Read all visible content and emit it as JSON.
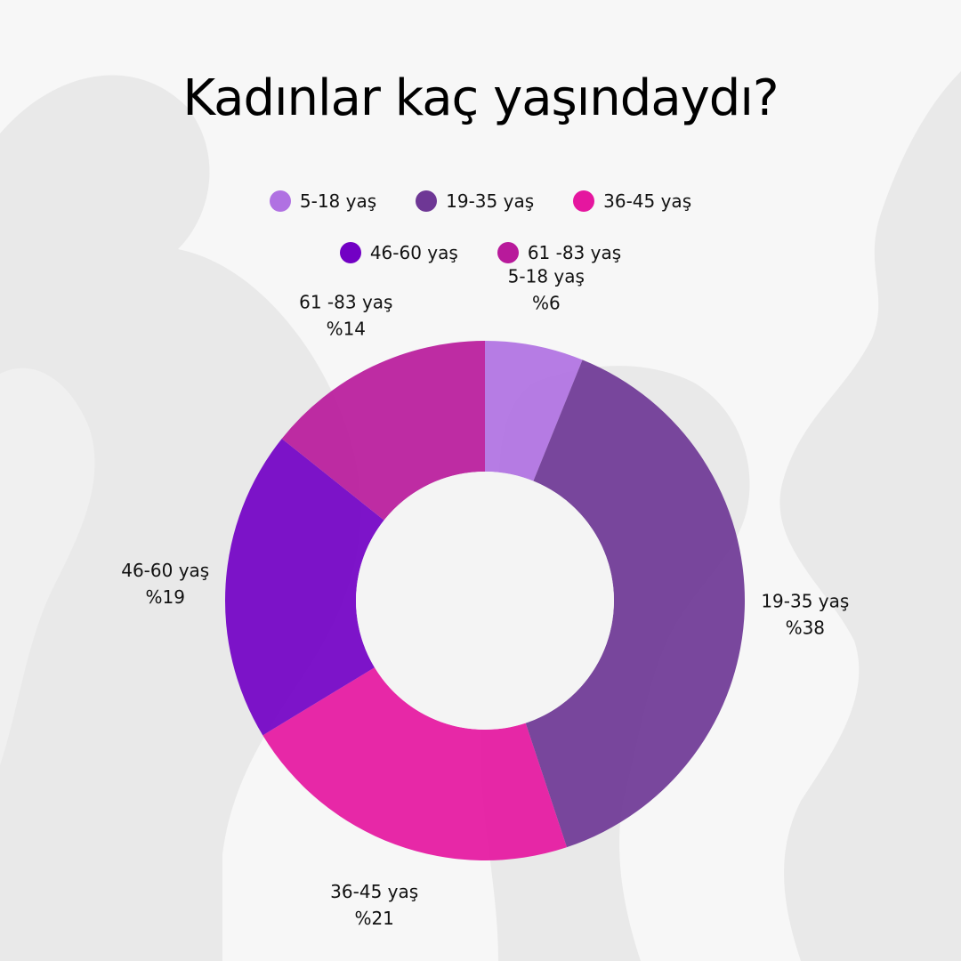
{
  "title": "Kadınlar kaç yaşındaydı?",
  "chart_data": {
    "type": "pie",
    "variant": "donut",
    "categories": [
      "5-18 yaş",
      "19-35 yaş",
      "36-45 yaş",
      "46-60 yaş",
      "61 -83 yaş"
    ],
    "values": [
      6,
      38,
      21,
      19,
      14
    ],
    "value_labels": [
      "%6",
      "%38",
      "%21",
      "%19",
      "%14"
    ],
    "colors": [
      "#b071e2",
      "#6e3795",
      "#e5169f",
      "#7200c4",
      "#b81a9b"
    ],
    "legend_position": "top"
  }
}
